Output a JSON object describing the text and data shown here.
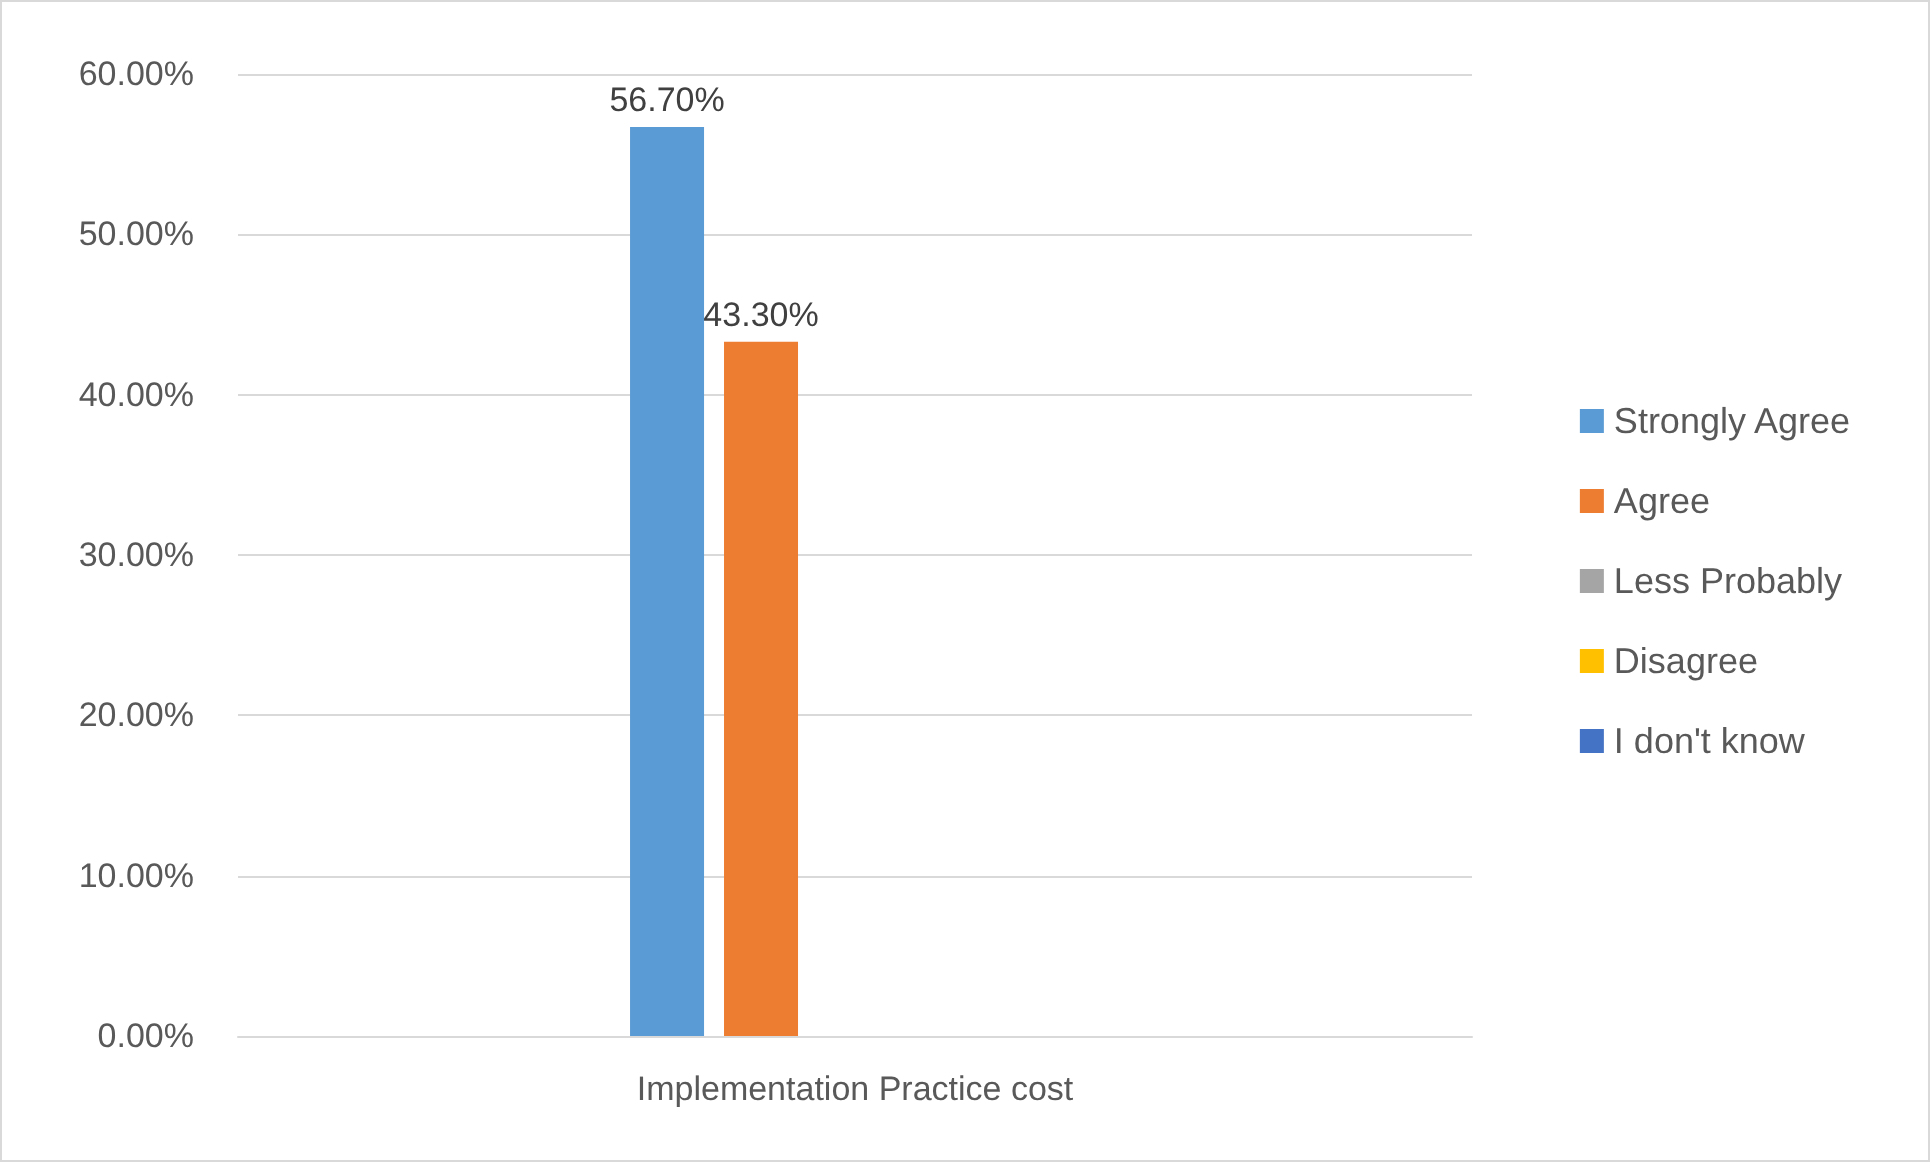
{
  "chart_data": {
    "type": "bar",
    "categories": [
      "Implementation Practice cost"
    ],
    "series": [
      {
        "name": "Strongly Agree",
        "color": "#5b9bd5",
        "values": [
          56.7
        ],
        "value_labels": [
          "56.70%"
        ]
      },
      {
        "name": "Agree",
        "color": "#ed7d31",
        "values": [
          43.3
        ],
        "value_labels": [
          "43.30%"
        ]
      },
      {
        "name": "Less Probably",
        "color": "#a5a5a5",
        "values": [
          null
        ]
      },
      {
        "name": "Disagree",
        "color": "#ffc000",
        "values": [
          null
        ]
      },
      {
        "name": "I don't know",
        "color": "#4472c4",
        "values": [
          null
        ]
      }
    ],
    "ylim": [
      0,
      60
    ],
    "yticks": [
      {
        "value": 0,
        "label": "0.00%"
      },
      {
        "value": 10,
        "label": "10.00%"
      },
      {
        "value": 20,
        "label": "20.00%"
      },
      {
        "value": 30,
        "label": "30.00%"
      },
      {
        "value": 40,
        "label": "40.00%"
      },
      {
        "value": 50,
        "label": "50.00%"
      },
      {
        "value": 60,
        "label": "60.00%"
      }
    ],
    "grid": "y",
    "legend": "right"
  }
}
